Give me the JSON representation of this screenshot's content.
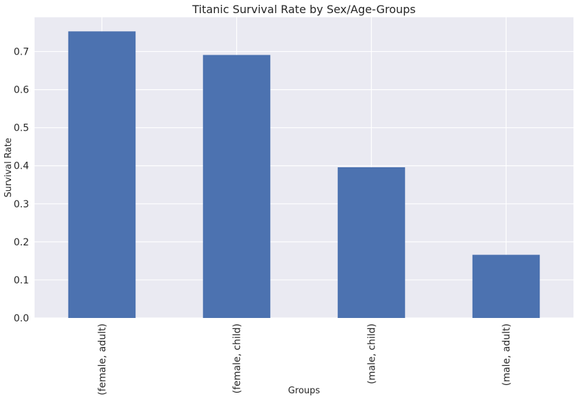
{
  "chart_data": {
    "type": "bar",
    "title": "Titanic Survival Rate by Sex/Age-Groups",
    "xlabel": "Groups",
    "ylabel": "Survival Rate",
    "categories": [
      "(female, adult)",
      "(female, child)",
      "(male, child)",
      "(male, adult)"
    ],
    "values": [
      0.753,
      0.691,
      0.396,
      0.166
    ],
    "ylim": [
      0,
      0.79
    ],
    "yticks": [
      0.0,
      0.1,
      0.2,
      0.3,
      0.4,
      0.5,
      0.6,
      0.7
    ],
    "ytick_labels": [
      "0.0",
      "0.1",
      "0.2",
      "0.3",
      "0.4",
      "0.5",
      "0.6",
      "0.7"
    ],
    "grid": true,
    "legend": "none",
    "colors": {
      "bar": "#4c72b0",
      "plot_background": "#eaeaf2",
      "grid": "#ffffff",
      "text": "#262626"
    }
  }
}
